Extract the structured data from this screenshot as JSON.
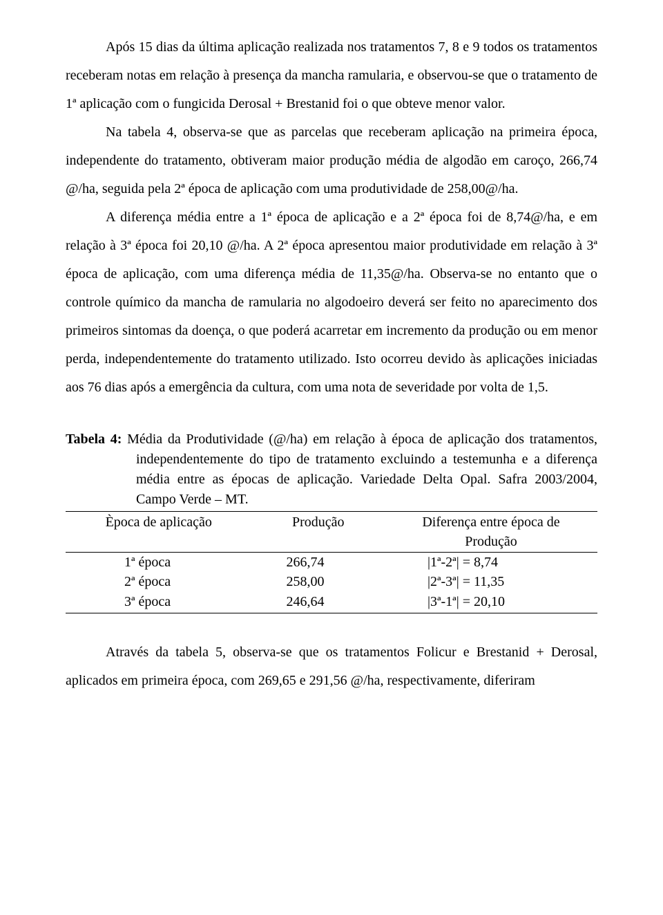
{
  "paragraphs": {
    "p1": "Após 15 dias da última aplicação realizada nos tratamentos 7, 8 e 9 todos os tratamentos receberam notas em relação à  presença da mancha ramularia, e observou-se que o tratamento de 1ª aplicação com o fungicida Derosal + Brestanid foi o que obteve menor valor.",
    "p2": "Na tabela 4, observa-se que as parcelas que receberam aplicação na primeira época, independente do tratamento, obtiveram maior produção média de algodão em caroço, 266,74 @/ha, seguida pela 2ª época de aplicação com uma produtividade de 258,00@/ha.",
    "p3": "A diferença média entre a 1ª época de aplicação e a 2ª época foi de 8,74@/ha, e em relação à 3ª época foi 20,10 @/ha. A 2ª época apresentou maior produtividade em relação à 3ª  época de aplicação, com uma diferença média de 11,35@/ha. Observa-se no entanto que o controle químico da mancha de ramularia no algodoeiro deverá ser feito no aparecimento dos primeiros sintomas da doença, o que poderá acarretar em incremento da produção ou em menor perda, independentemente do tratamento utilizado. Isto ocorreu devido às aplicações iniciadas aos 76 dias após a emergência da cultura, com uma nota de severidade por volta de 1,5.",
    "p4": "Através da tabela 5, observa-se que os tratamentos Folicur e Brestanid + Derosal, aplicados em primeira época, com 269,65 e 291,56 @/ha, respectivamente, diferiram"
  },
  "table": {
    "label": "Tabela 4:",
    "caption": "Média da Produtividade (@/ha) em relação à época de aplicação dos tratamentos, independentemente do tipo de tratamento excluindo a testemunha e a diferença média entre as épocas de aplicação. Variedade Delta Opal. Safra 2003/2004, Campo Verde – MT.",
    "headers": {
      "epoca": "Època de aplicação",
      "producao": "Produção",
      "diff1": "Diferença entre época de",
      "diff2": "Produção"
    },
    "rows": [
      {
        "epoca": "1ª época",
        "prod": "266,74",
        "diff": "|1ª-2ª| = 8,74"
      },
      {
        "epoca": "2ª época",
        "prod": "258,00",
        "diff": "|2ª-3ª| = 11,35"
      },
      {
        "epoca": "3ª época",
        "prod": "246,64",
        "diff": "|3ª-1ª| = 20,10"
      }
    ]
  }
}
